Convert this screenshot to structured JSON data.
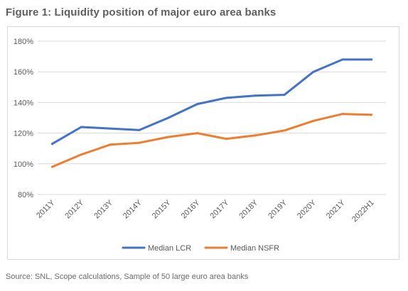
{
  "figure_title": "Figure 1: Liquidity position of major euro area banks",
  "source": "Source: SNL, Scope calculations, Sample of 50 large euro area banks",
  "colors": {
    "lcr": "#4472c4",
    "nsfr": "#ed7d31",
    "grid": "#d9d9d9",
    "frame": "#d9d9d9"
  },
  "chart_data": {
    "type": "line",
    "categories": [
      "2011Y",
      "2012Y",
      "2013Y",
      "2014Y",
      "2015Y",
      "2016Y",
      "2017Y",
      "2018Y",
      "2019Y",
      "2020Y",
      "2021Y",
      "2022H1"
    ],
    "series": [
      {
        "name": "Median LCR",
        "values": [
          113,
          124,
          123,
          122,
          130,
          139,
          143,
          144.5,
          145,
          160,
          168,
          168
        ]
      },
      {
        "name": "Median NSFR",
        "values": [
          98,
          106,
          112.5,
          113.7,
          117.5,
          120,
          116.3,
          118.5,
          121.7,
          128,
          132.5,
          132
        ]
      }
    ],
    "yticks": [
      "80%",
      "100%",
      "120%",
      "140%",
      "160%",
      "180%"
    ],
    "ylim": [
      80,
      180
    ],
    "grid": "horizontal",
    "legend_position": "bottom",
    "xlabel": "",
    "ylabel": ""
  }
}
